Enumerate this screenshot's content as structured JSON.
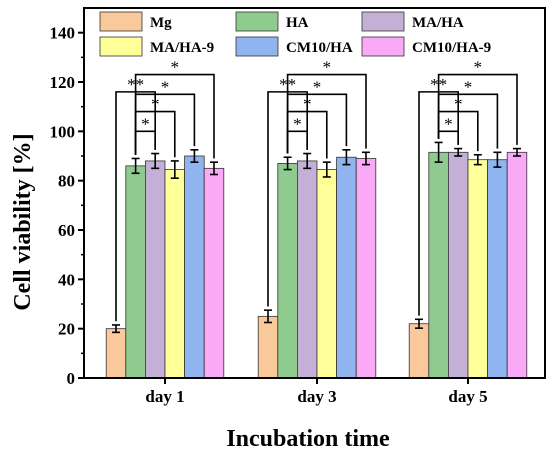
{
  "chart_data": {
    "type": "bar",
    "title": "",
    "xlabel": "Incubation time",
    "ylabel": "Cell viability [%]",
    "ylim": [
      0,
      150
    ],
    "yticks": [
      0,
      20,
      40,
      60,
      80,
      100,
      120,
      140
    ],
    "categories": [
      "day 1",
      "day 3",
      "day 5"
    ],
    "legend_placement": "top",
    "series": [
      {
        "name": "Mg",
        "color": "#F9C99B",
        "values": [
          20,
          25,
          22
        ],
        "errors": [
          1.5,
          2.5,
          1.8
        ]
      },
      {
        "name": "HA",
        "color": "#8FCB8F",
        "values": [
          86,
          87,
          91.5
        ],
        "errors": [
          3,
          2.5,
          4
        ]
      },
      {
        "name": "MA/HA",
        "color": "#C4B0D6",
        "values": [
          88,
          88,
          91.5
        ],
        "errors": [
          3,
          3,
          1.5
        ]
      },
      {
        "name": "MA/HA-9",
        "color": "#FFFF99",
        "values": [
          84.5,
          84.5,
          88.5
        ],
        "errors": [
          3.5,
          3,
          2
        ]
      },
      {
        "name": "CM10/HA",
        "color": "#8FB4F0",
        "values": [
          90,
          89.5,
          88.5
        ],
        "errors": [
          2.5,
          3,
          3
        ]
      },
      {
        "name": "CM10/HA-9",
        "color": "#F9A9F5",
        "values": [
          85,
          89,
          91.5
        ],
        "errors": [
          2.5,
          2.5,
          1.5
        ]
      }
    ],
    "annotations": [
      {
        "group": "day 1",
        "from": "Mg",
        "to": "MA/HA",
        "label": "**"
      },
      {
        "group": "day 1",
        "from": "HA",
        "to": "MA/HA",
        "label": "*"
      },
      {
        "group": "day 1",
        "from": "HA",
        "to": "MA/HA-9",
        "label": "*"
      },
      {
        "group": "day 1",
        "from": "HA",
        "to": "CM10/HA",
        "label": "*"
      },
      {
        "group": "day 1",
        "from": "HA",
        "to": "CM10/HA-9",
        "label": "*"
      },
      {
        "group": "day 3",
        "from": "Mg",
        "to": "MA/HA",
        "label": "**"
      },
      {
        "group": "day 3",
        "from": "HA",
        "to": "MA/HA",
        "label": "*"
      },
      {
        "group": "day 3",
        "from": "HA",
        "to": "MA/HA-9",
        "label": "*"
      },
      {
        "group": "day 3",
        "from": "HA",
        "to": "CM10/HA",
        "label": "*"
      },
      {
        "group": "day 3",
        "from": "HA",
        "to": "CM10/HA-9",
        "label": "*"
      },
      {
        "group": "day 5",
        "from": "Mg",
        "to": "MA/HA",
        "label": "**"
      },
      {
        "group": "day 5",
        "from": "HA",
        "to": "MA/HA",
        "label": "*"
      },
      {
        "group": "day 5",
        "from": "HA",
        "to": "MA/HA-9",
        "label": "*"
      },
      {
        "group": "day 5",
        "from": "HA",
        "to": "CM10/HA",
        "label": "*"
      },
      {
        "group": "day 5",
        "from": "HA",
        "to": "CM10/HA-9",
        "label": "*"
      }
    ]
  }
}
